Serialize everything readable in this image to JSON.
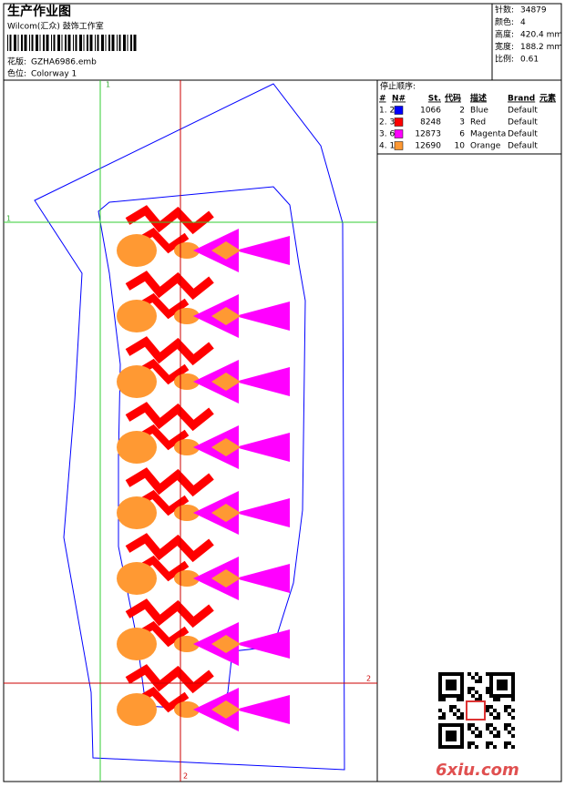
{
  "header": {
    "title": "生产作业图",
    "studio": "Wilcom(汇众) 鼓饰工作室",
    "design_label": "花版:",
    "design": "GZHA6986.emb",
    "colorway_label": "色位:",
    "colorway": "Colorway 1"
  },
  "info": [
    {
      "label": "针数:",
      "value": "34879"
    },
    {
      "label": "颜色:",
      "value": "4"
    },
    {
      "label": "高度:",
      "value": "420.4 mm"
    },
    {
      "label": "宽度:",
      "value": "188.2 mm"
    },
    {
      "label": "比例:",
      "value": "0.61"
    }
  ],
  "stop_sequence": {
    "title": "停止顺序:",
    "columns": [
      "#",
      "N#",
      "St.",
      "代码",
      "描述",
      "Brand",
      "元素"
    ],
    "rows": [
      {
        "index": "1. 2",
        "color": "#0000ff",
        "stitches": "1066",
        "code": "2",
        "description": "Blue",
        "brand": "Default"
      },
      {
        "index": "2. 3",
        "color": "#ff0000",
        "stitches": "8248",
        "code": "3",
        "description": "Red",
        "brand": "Default"
      },
      {
        "index": "3. 6",
        "color": "#ff00ff",
        "stitches": "12873",
        "code": "6",
        "description": "Magenta",
        "brand": "Default"
      },
      {
        "index": "4. 10",
        "color": "#ff9933",
        "stitches": "12690",
        "code": "10",
        "description": "Orange",
        "brand": "Default"
      }
    ]
  },
  "markers": {
    "start": "1",
    "end": "2"
  },
  "watermark": "6xiu.com"
}
